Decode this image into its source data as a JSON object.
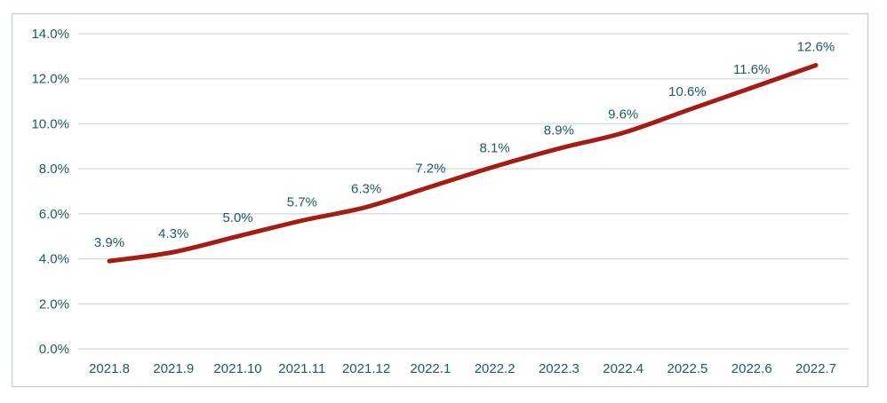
{
  "chart_data": {
    "type": "line",
    "title": "",
    "xlabel": "",
    "ylabel": "",
    "categories": [
      "2021.8",
      "2021.9",
      "2021.10",
      "2021.11",
      "2021.12",
      "2022.1",
      "2022.2",
      "2022.3",
      "2022.4",
      "2022.5",
      "2022.6",
      "2022.7"
    ],
    "values": [
      3.9,
      4.3,
      5.0,
      5.7,
      6.3,
      7.2,
      8.1,
      8.9,
      9.6,
      10.6,
      11.6,
      12.6
    ],
    "data_labels": [
      "3.9%",
      "4.3%",
      "5.0%",
      "5.7%",
      "6.3%",
      "7.2%",
      "8.1%",
      "8.9%",
      "9.6%",
      "10.6%",
      "11.6%",
      "12.6%"
    ],
    "ylim": [
      0,
      14
    ],
    "y_ticks": [
      0,
      2,
      4,
      6,
      8,
      10,
      12,
      14
    ],
    "y_tick_labels": [
      "0.0%",
      "2.0%",
      "4.0%",
      "6.0%",
      "8.0%",
      "10.0%",
      "12.0%",
      "14.0%"
    ],
    "grid": true,
    "legend": "none",
    "smooth": true
  },
  "colors": {
    "line": "#A51C15",
    "text": "#1E5A66",
    "gridline": "#D7DFE2",
    "frame_border": "#C8D5DB",
    "background": "#FFFFFF"
  }
}
